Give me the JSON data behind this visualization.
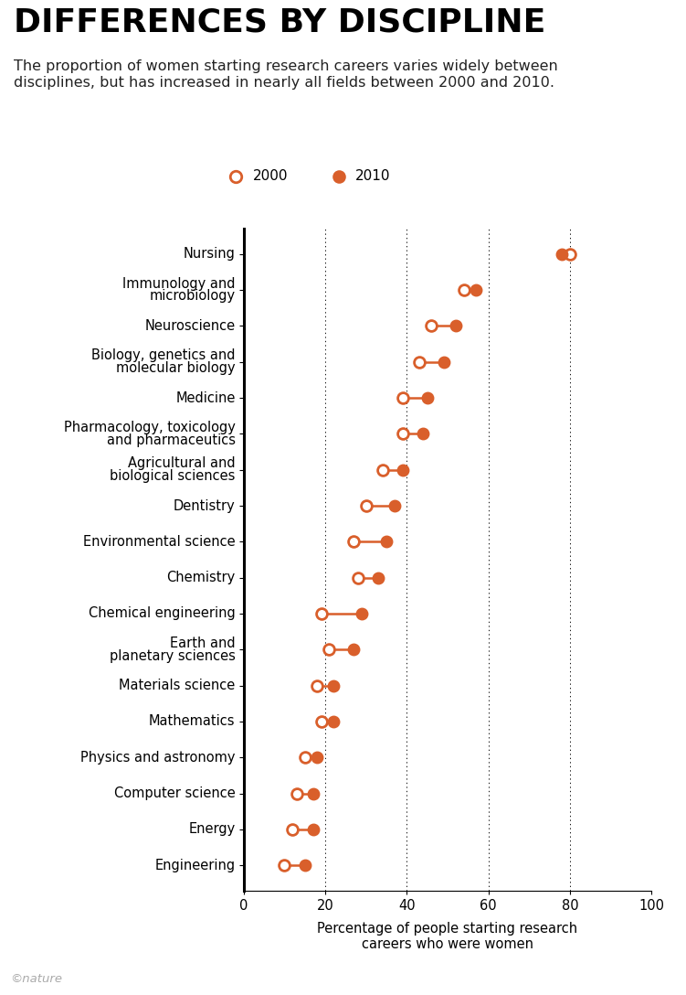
{
  "title": "DIFFERENCES BY DISCIPLINE",
  "subtitle": "The proportion of women starting research careers varies widely between\ndisciplines, but has increased in nearly all fields between 2000 and 2010.",
  "xlabel": "Percentage of people starting research\ncareers who were women",
  "categories": [
    "Nursing",
    "Immunology and\nmicrobiology",
    "Neuroscience",
    "Biology, genetics and\nmolecular biology",
    "Medicine",
    "Pharmacology, toxicology\nand pharmaceutics",
    "Agricultural and\nbiological sciences",
    "Dentistry",
    "Environmental science",
    "Chemistry",
    "Chemical engineering",
    "Earth and\nplanetary sciences",
    "Materials science",
    "Mathematics",
    "Physics and astronomy",
    "Computer science",
    "Energy",
    "Engineering"
  ],
  "val_2000": [
    80,
    54,
    46,
    43,
    39,
    39,
    34,
    30,
    27,
    28,
    19,
    21,
    18,
    19,
    15,
    13,
    12,
    10
  ],
  "val_2010": [
    78,
    57,
    52,
    49,
    45,
    44,
    39,
    37,
    35,
    33,
    29,
    27,
    22,
    22,
    18,
    17,
    17,
    15
  ],
  "dot_color": "#d95f2b",
  "xlim": [
    0,
    100
  ],
  "xticks": [
    0,
    20,
    40,
    60,
    80,
    100
  ],
  "vgrid_at": [
    20,
    40,
    60,
    80
  ],
  "title_fontsize": 26,
  "subtitle_fontsize": 11.5,
  "label_fontsize": 10.5,
  "tick_fontsize": 10.5,
  "legend_fontsize": 11,
  "copyright": "©nature"
}
